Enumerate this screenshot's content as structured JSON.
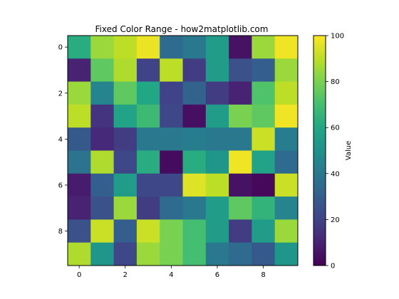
{
  "chart_data": {
    "type": "heatmap",
    "title": "Fixed Color Range - how2matplotlib.com",
    "xlabel": "",
    "ylabel": "",
    "colormap": "viridis",
    "vmin": 0,
    "vmax": 100,
    "x_ticks": [
      0,
      2,
      4,
      6,
      8
    ],
    "y_ticks": [
      0,
      2,
      4,
      6,
      8
    ],
    "x_tick_labels": [
      "0",
      "2",
      "4",
      "6",
      "8"
    ],
    "y_tick_labels": [
      "0",
      "2",
      "4",
      "6",
      "8"
    ],
    "colorbar": {
      "label": "Value",
      "ticks": [
        0,
        20,
        40,
        60,
        80,
        100
      ],
      "tick_labels": [
        "0",
        "20",
        "40",
        "60",
        "80",
        "100"
      ]
    },
    "values": [
      [
        62,
        85,
        90,
        97,
        35,
        40,
        55,
        5,
        85,
        98
      ],
      [
        10,
        75,
        88,
        20,
        90,
        18,
        55,
        25,
        30,
        85
      ],
      [
        85,
        45,
        75,
        60,
        20,
        32,
        18,
        10,
        72,
        90
      ],
      [
        90,
        15,
        58,
        68,
        22,
        4,
        55,
        80,
        75,
        98
      ],
      [
        28,
        12,
        18,
        40,
        40,
        42,
        40,
        40,
        92,
        42
      ],
      [
        38,
        88,
        22,
        62,
        3,
        62,
        52,
        98,
        58,
        35
      ],
      [
        8,
        30,
        55,
        22,
        22,
        95,
        90,
        5,
        2,
        92
      ],
      [
        10,
        25,
        85,
        18,
        35,
        40,
        55,
        75,
        65,
        45
      ],
      [
        25,
        92,
        30,
        92,
        80,
        70,
        55,
        18,
        55,
        85
      ],
      [
        88,
        52,
        22,
        85,
        80,
        70,
        40,
        35,
        28,
        52
      ]
    ]
  }
}
